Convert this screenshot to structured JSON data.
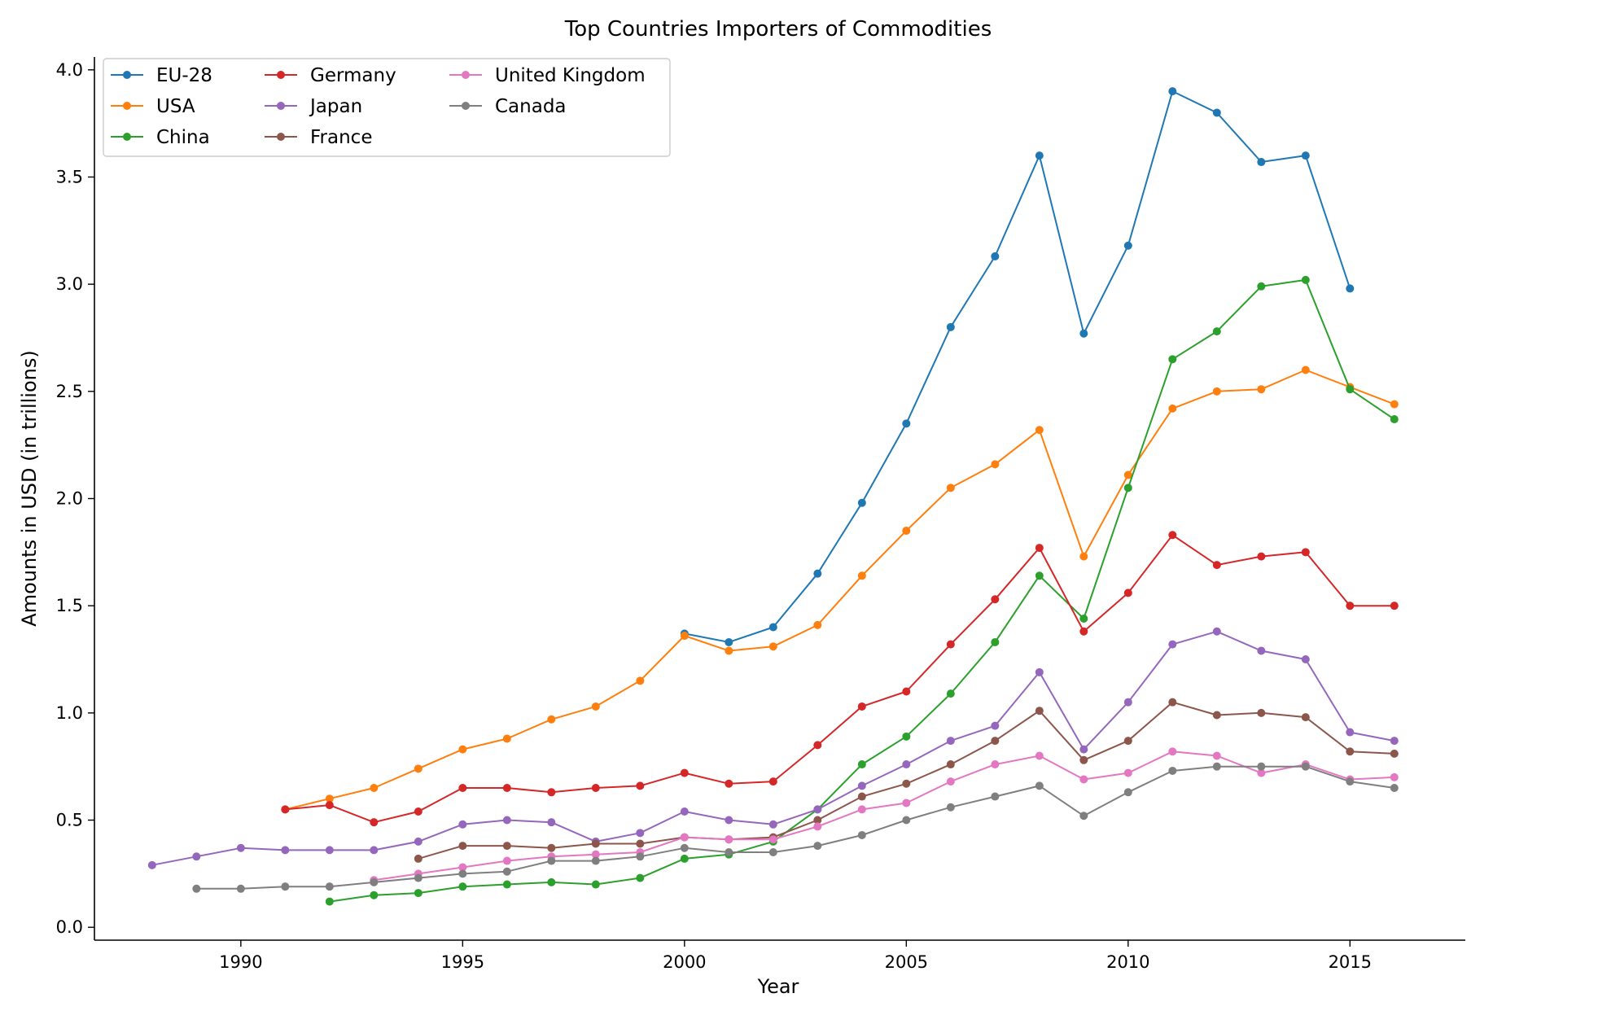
{
  "chart_data": {
    "type": "line",
    "title": "Top Countries Importers of Commodities",
    "xlabel": "Year",
    "ylabel": "Amounts in USD (in trillions)",
    "xlim": [
      1986.7,
      2017.6
    ],
    "ylim": [
      -0.06,
      4.06
    ],
    "xticks": [
      1990,
      1995,
      2000,
      2005,
      2010,
      2015
    ],
    "yticks": [
      0.0,
      0.5,
      1.0,
      1.5,
      2.0,
      2.5,
      3.0,
      3.5,
      4.0
    ],
    "ytick_labels": [
      "0.0",
      "0.5",
      "1.0",
      "1.5",
      "2.0",
      "2.5",
      "3.0",
      "3.5",
      "4.0"
    ],
    "grid": false,
    "legend_position": "top-left",
    "legend_columns": 3,
    "series": [
      {
        "name": "EU-28",
        "color": "#1f77b4",
        "x": [
          2000,
          2001,
          2002,
          2003,
          2004,
          2005,
          2006,
          2007,
          2008,
          2009,
          2010,
          2011,
          2012,
          2013,
          2014,
          2015
        ],
        "y": [
          1.37,
          1.33,
          1.4,
          1.65,
          1.98,
          2.35,
          2.8,
          3.13,
          3.6,
          2.77,
          3.18,
          3.9,
          3.8,
          3.57,
          3.6,
          2.98
        ]
      },
      {
        "name": "USA",
        "color": "#ff7f0e",
        "x": [
          1991,
          1992,
          1993,
          1994,
          1995,
          1996,
          1997,
          1998,
          1999,
          2000,
          2001,
          2002,
          2003,
          2004,
          2005,
          2006,
          2007,
          2008,
          2009,
          2010,
          2011,
          2012,
          2013,
          2014,
          2015,
          2016
        ],
        "y": [
          0.55,
          0.6,
          0.65,
          0.74,
          0.83,
          0.88,
          0.97,
          1.03,
          1.15,
          1.36,
          1.29,
          1.31,
          1.41,
          1.64,
          1.85,
          2.05,
          2.16,
          2.32,
          1.73,
          2.11,
          2.42,
          2.5,
          2.51,
          2.6,
          2.52,
          2.44
        ]
      },
      {
        "name": "China",
        "color": "#2ca02c",
        "x": [
          1992,
          1993,
          1994,
          1995,
          1996,
          1997,
          1998,
          1999,
          2000,
          2001,
          2002,
          2003,
          2004,
          2005,
          2006,
          2007,
          2008,
          2009,
          2010,
          2011,
          2012,
          2013,
          2014,
          2015,
          2016
        ],
        "y": [
          0.12,
          0.15,
          0.16,
          0.19,
          0.2,
          0.21,
          0.2,
          0.23,
          0.32,
          0.34,
          0.4,
          0.55,
          0.76,
          0.89,
          1.09,
          1.33,
          1.64,
          1.44,
          2.05,
          2.65,
          2.78,
          2.99,
          3.02,
          2.51,
          2.37
        ]
      },
      {
        "name": "Germany",
        "color": "#d62728",
        "x": [
          1991,
          1992,
          1993,
          1994,
          1995,
          1996,
          1997,
          1998,
          1999,
          2000,
          2001,
          2002,
          2003,
          2004,
          2005,
          2006,
          2007,
          2008,
          2009,
          2010,
          2011,
          2012,
          2013,
          2014,
          2015,
          2016
        ],
        "y": [
          0.55,
          0.57,
          0.49,
          0.54,
          0.65,
          0.65,
          0.63,
          0.65,
          0.66,
          0.72,
          0.67,
          0.68,
          0.85,
          1.03,
          1.1,
          1.32,
          1.53,
          1.77,
          1.38,
          1.56,
          1.83,
          1.69,
          1.73,
          1.75,
          1.5,
          1.5
        ]
      },
      {
        "name": "Japan",
        "color": "#9467bd",
        "x": [
          1988,
          1989,
          1990,
          1991,
          1992,
          1993,
          1994,
          1995,
          1996,
          1997,
          1998,
          1999,
          2000,
          2001,
          2002,
          2003,
          2004,
          2005,
          2006,
          2007,
          2008,
          2009,
          2010,
          2011,
          2012,
          2013,
          2014,
          2015,
          2016
        ],
        "y": [
          0.29,
          0.33,
          0.37,
          0.36,
          0.36,
          0.36,
          0.4,
          0.48,
          0.5,
          0.49,
          0.4,
          0.44,
          0.54,
          0.5,
          0.48,
          0.55,
          0.66,
          0.76,
          0.87,
          0.94,
          1.19,
          0.83,
          1.05,
          1.32,
          1.38,
          1.29,
          1.25,
          0.91,
          0.87
        ]
      },
      {
        "name": "France",
        "color": "#8c564b",
        "x": [
          1994,
          1995,
          1996,
          1997,
          1998,
          1999,
          2000,
          2001,
          2002,
          2003,
          2004,
          2005,
          2006,
          2007,
          2008,
          2009,
          2010,
          2011,
          2012,
          2013,
          2014,
          2015,
          2016
        ],
        "y": [
          0.32,
          0.38,
          0.38,
          0.37,
          0.39,
          0.39,
          0.42,
          0.41,
          0.42,
          0.5,
          0.61,
          0.67,
          0.76,
          0.87,
          1.01,
          0.78,
          0.87,
          1.05,
          0.99,
          1.0,
          0.98,
          0.82,
          0.81
        ]
      },
      {
        "name": "United Kingdom",
        "color": "#e377c2",
        "x": [
          1993,
          1994,
          1995,
          1996,
          1997,
          1998,
          1999,
          2000,
          2001,
          2002,
          2003,
          2004,
          2005,
          2006,
          2007,
          2008,
          2009,
          2010,
          2011,
          2012,
          2013,
          2014,
          2015,
          2016
        ],
        "y": [
          0.22,
          0.25,
          0.28,
          0.31,
          0.33,
          0.34,
          0.35,
          0.42,
          0.41,
          0.41,
          0.47,
          0.55,
          0.58,
          0.68,
          0.76,
          0.8,
          0.69,
          0.72,
          0.82,
          0.8,
          0.72,
          0.76,
          0.69,
          0.7
        ]
      },
      {
        "name": "Canada",
        "color": "#7f7f7f",
        "x": [
          1989,
          1990,
          1991,
          1992,
          1993,
          1994,
          1995,
          1996,
          1997,
          1998,
          1999,
          2000,
          2001,
          2002,
          2003,
          2004,
          2005,
          2006,
          2007,
          2008,
          2009,
          2010,
          2011,
          2012,
          2013,
          2014,
          2015,
          2016
        ],
        "y": [
          0.18,
          0.18,
          0.19,
          0.19,
          0.21,
          0.23,
          0.25,
          0.26,
          0.31,
          0.31,
          0.33,
          0.37,
          0.35,
          0.35,
          0.38,
          0.43,
          0.5,
          0.56,
          0.61,
          0.66,
          0.52,
          0.63,
          0.73,
          0.75,
          0.75,
          0.75,
          0.68,
          0.65
        ]
      }
    ]
  }
}
